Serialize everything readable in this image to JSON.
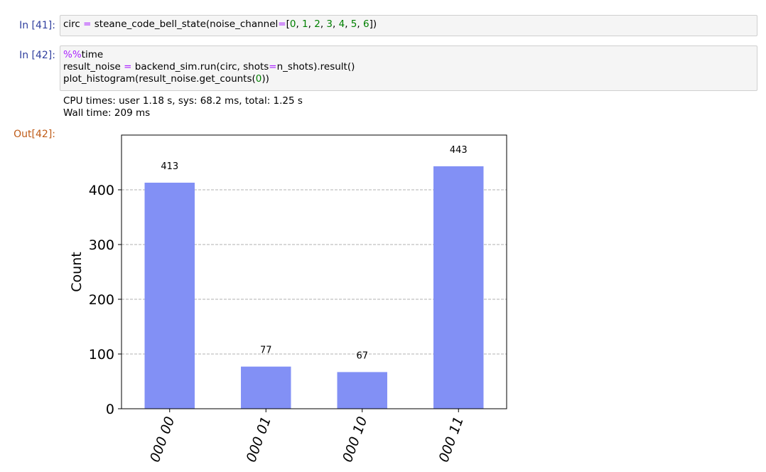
{
  "cells": [
    {
      "prompt": "In [41]:",
      "code": {
        "fn": "circ",
        "eq": "=",
        "call": "steane_code_bell_state(noise_channel",
        "eq2": "=",
        "open": "[",
        "n0": "0",
        "n1": "1",
        "n2": "2",
        "n3": "3",
        "n4": "4",
        "n5": "5",
        "n6": "6",
        "sep": ", ",
        "close": "])"
      }
    },
    {
      "prompt": "In [42]:",
      "line1_magic": "%%",
      "line1_rest": "time",
      "line2_a": "result_noise ",
      "line2_eq": "=",
      "line2_b": " backend_sim.run(circ, shots",
      "line2_eq2": "=",
      "line2_c": "n_shots).result()",
      "line3_a": "plot_histogram(result_noise.get_counts(",
      "line3_num": "0",
      "line3_b": "))"
    }
  ],
  "output": {
    "stdout_line1": "CPU times: user 1.18 s, sys: 68.2 ms, total: 1.25 s",
    "stdout_line2": "Wall time: 209 ms",
    "prompt": "Out[42]:"
  },
  "colors": {
    "bar": "#8290f5",
    "grid": "#b0b0b0",
    "prompt_in": "#303f9f",
    "prompt_out": "#bf5b17"
  },
  "chart_data": {
    "type": "bar",
    "categories": [
      "000 00",
      "000 01",
      "000 10",
      "000 11"
    ],
    "values": [
      413,
      77,
      67,
      443
    ],
    "value_labels": [
      "413",
      "77",
      "67",
      "443"
    ],
    "title": "",
    "xlabel": "",
    "ylabel": "Count",
    "ylim": [
      0,
      500
    ],
    "yticks": [
      0,
      100,
      200,
      300,
      400
    ],
    "ytick_labels": [
      "0",
      "100",
      "200",
      "300",
      "400"
    ],
    "grid": "horizontal dashed"
  }
}
